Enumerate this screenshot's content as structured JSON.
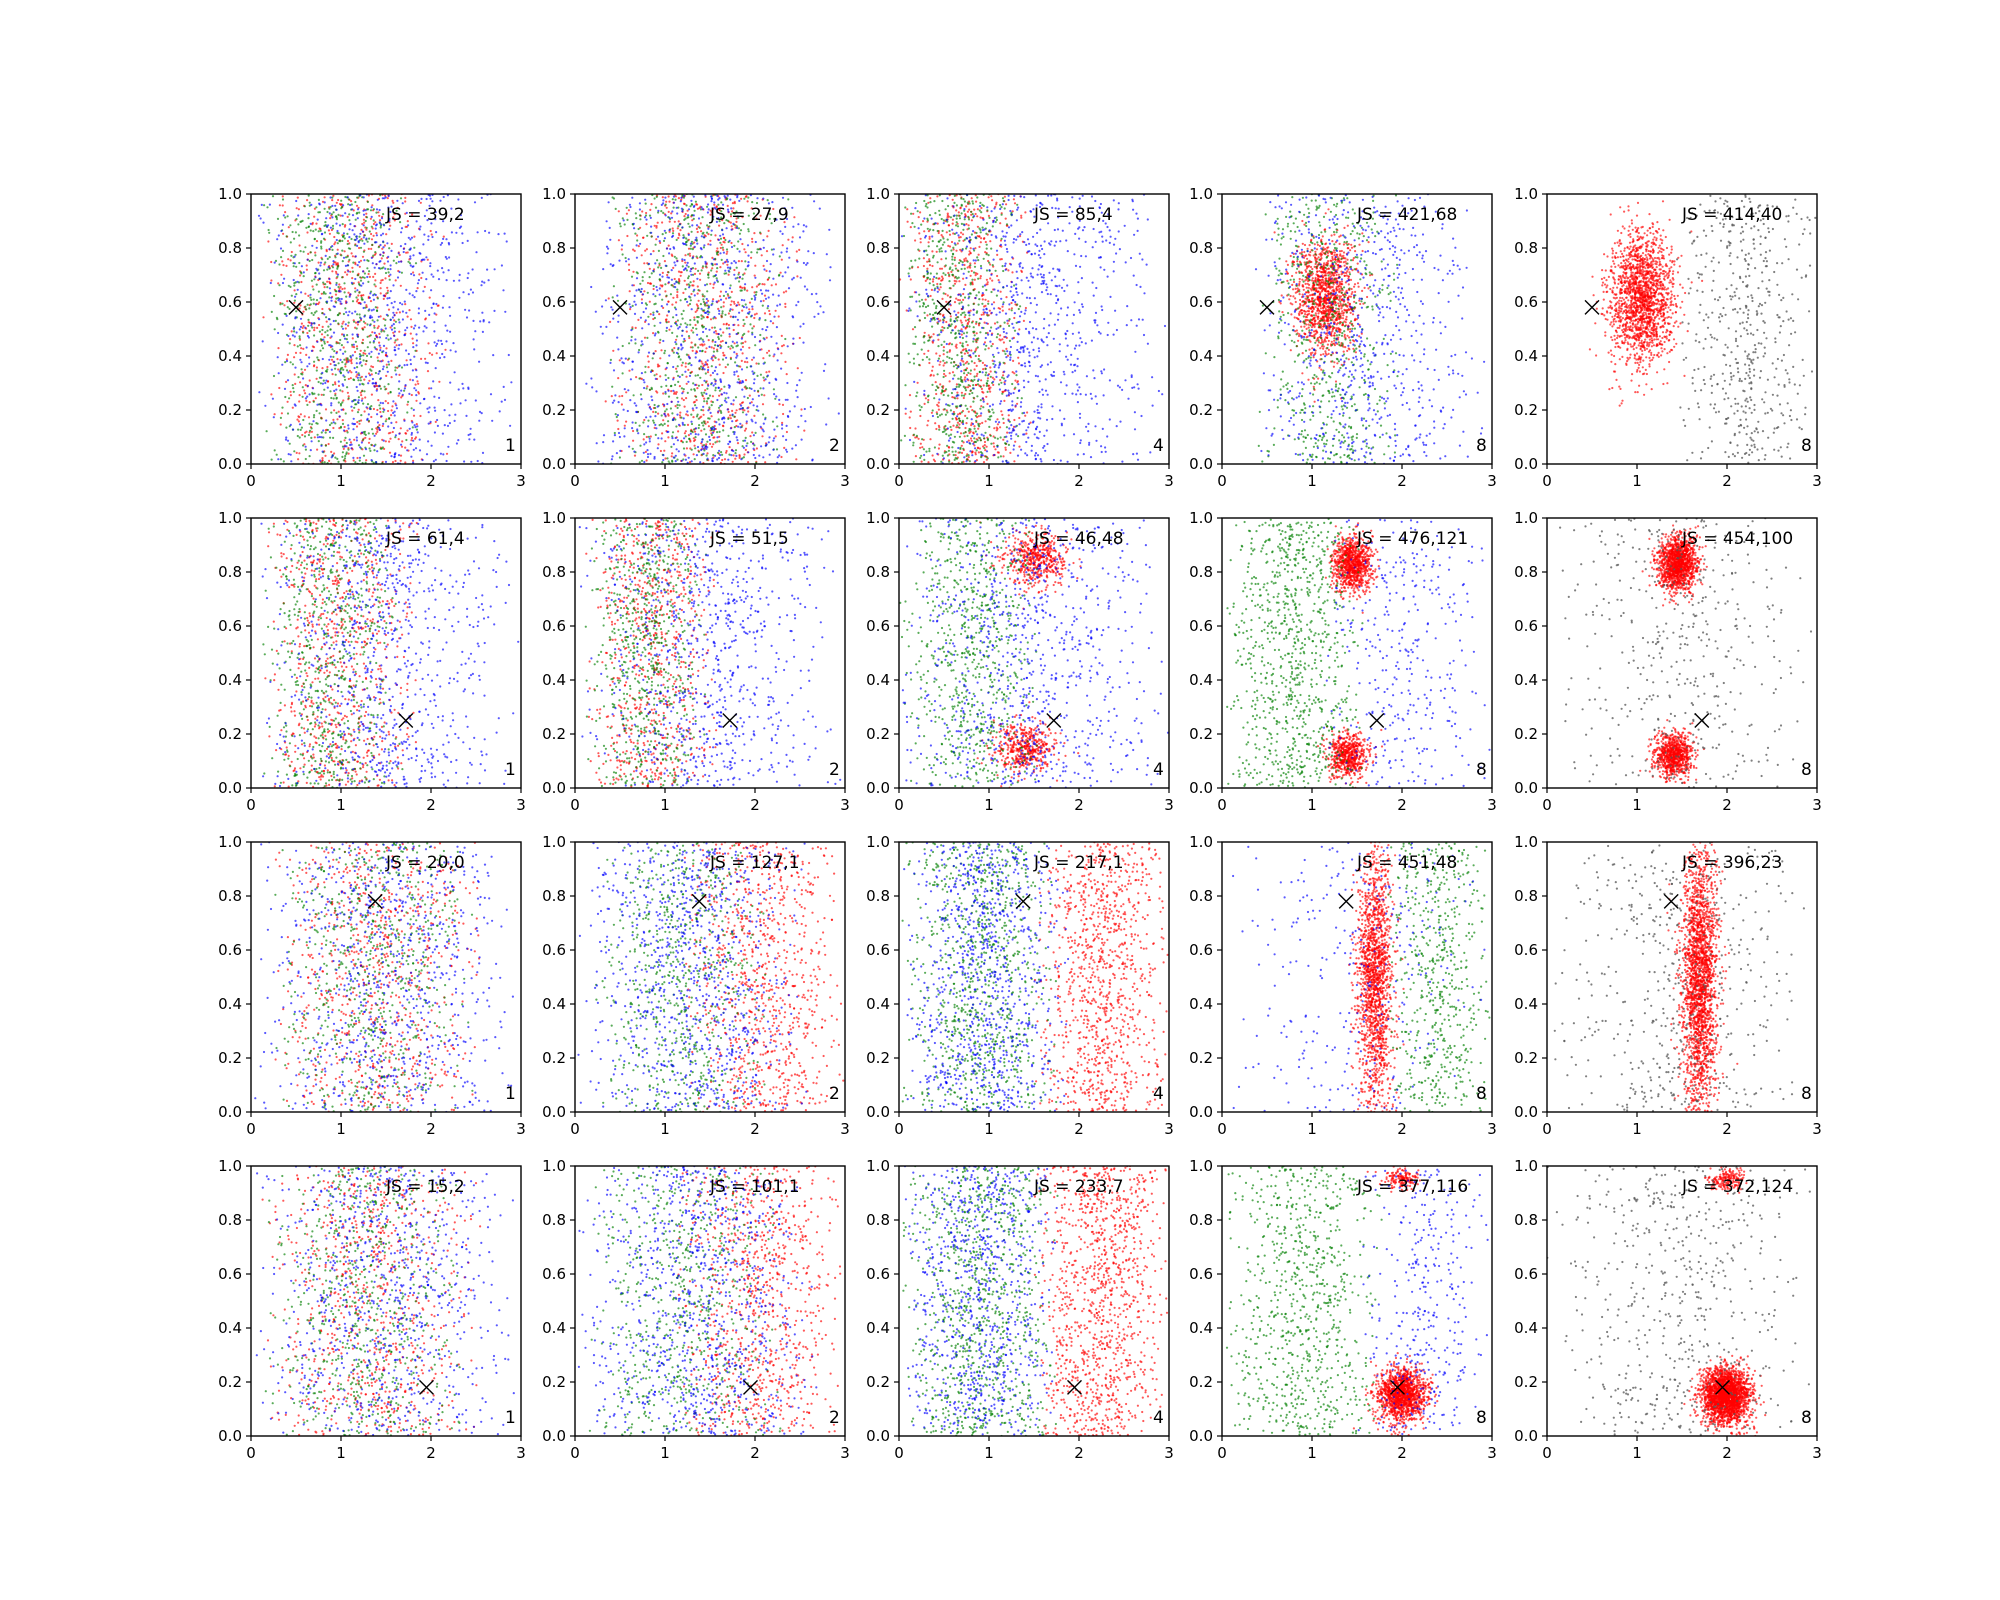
{
  "chart_data": {
    "type": "scatter",
    "layout": {
      "rows": 4,
      "cols": 5
    },
    "xlim": [
      0,
      3
    ],
    "ylim": [
      0,
      1
    ],
    "xticks": [
      "0",
      "1",
      "2",
      "3"
    ],
    "yticks": [
      "0.0",
      "0.2",
      "0.4",
      "0.6",
      "0.8",
      "1.0"
    ],
    "grid": false,
    "legend": "none",
    "colors": {
      "red": "#ff0000",
      "green": "#008000",
      "blue": "#0000ff",
      "gray": "#555555",
      "marker": "#000000"
    },
    "rows": [
      {
        "marker": [
          0.5,
          0.58
        ],
        "panels": [
          {
            "js": "JS = 39,2",
            "k": "1",
            "components": [
              {
                "color": "red",
                "mix": "band",
                "x": [
                  0.1,
                  2.2
                ],
                "n": 700
              },
              {
                "color": "green",
                "mix": "band",
                "x": [
                  0.1,
                  1.9
                ],
                "n": 650
              },
              {
                "color": "blue",
                "mix": "band",
                "x": [
                  0.0,
                  3.0
                ],
                "n": 800
              }
            ]
          },
          {
            "js": "JS = 27,9",
            "k": "2",
            "components": [
              {
                "color": "red",
                "mix": "band",
                "x": [
                  0.3,
                  2.6
                ],
                "n": 750
              },
              {
                "color": "green",
                "mix": "band",
                "x": [
                  0.3,
                  2.4
                ],
                "n": 650
              },
              {
                "color": "blue",
                "mix": "band",
                "x": [
                  0.0,
                  3.0
                ],
                "n": 800
              }
            ]
          },
          {
            "js": "JS = 85,4",
            "k": "4",
            "components": [
              {
                "color": "red",
                "mix": "band",
                "x": [
                  0.0,
                  1.5
                ],
                "n": 700
              },
              {
                "color": "green",
                "mix": "band",
                "x": [
                  0.0,
                  1.4
                ],
                "n": 650
              },
              {
                "color": "blue",
                "mix": "band",
                "x": [
                  0.0,
                  3.0
                ],
                "n": 800
              }
            ]
          },
          {
            "js": "JS = 421,68",
            "k": "8",
            "components": [
              {
                "color": "red",
                "mix": "blob",
                "cx": 1.15,
                "cy": 0.62,
                "sx": 0.35,
                "sy": 0.22,
                "n": 1200
              },
              {
                "color": "green",
                "mix": "band",
                "x": [
                  0.4,
                  2.0
                ],
                "n": 600
              },
              {
                "color": "blue",
                "mix": "band",
                "x": [
                  0.2,
                  3.0
                ],
                "n": 650
              }
            ]
          },
          {
            "js": "JS = 414,40",
            "k": "8",
            "components": [
              {
                "color": "red",
                "mix": "blob",
                "cx": 1.05,
                "cy": 0.62,
                "sx": 0.35,
                "sy": 0.25,
                "n": 1700
              },
              {
                "color": "gray",
                "mix": "band",
                "x": [
                  1.4,
                  3.0
                ],
                "n": 500
              }
            ]
          }
        ]
      },
      {
        "marker": [
          1.72,
          0.25
        ],
        "panels": [
          {
            "js": "JS = 61,4",
            "k": "1",
            "components": [
              {
                "color": "red",
                "mix": "band",
                "x": [
                  0.1,
                  1.9
                ],
                "n": 700
              },
              {
                "color": "green",
                "mix": "band",
                "x": [
                  0.1,
                  1.7
                ],
                "n": 650
              },
              {
                "color": "blue",
                "mix": "band",
                "x": [
                  0.0,
                  3.0
                ],
                "n": 800
              }
            ]
          },
          {
            "js": "JS = 51,5",
            "k": "2",
            "components": [
              {
                "color": "red",
                "mix": "band",
                "x": [
                  0.1,
                  1.6
                ],
                "n": 700
              },
              {
                "color": "green",
                "mix": "band",
                "x": [
                  0.1,
                  1.5
                ],
                "n": 650
              },
              {
                "color": "blue",
                "mix": "band",
                "x": [
                  0.0,
                  3.0
                ],
                "n": 800
              }
            ]
          },
          {
            "js": "JS = 46,48",
            "k": "4",
            "components": [
              {
                "color": "red",
                "mix": "blob",
                "cx": 1.5,
                "cy": 0.85,
                "sx": 0.35,
                "sy": 0.1,
                "n": 500
              },
              {
                "color": "red",
                "mix": "blob",
                "cx": 1.4,
                "cy": 0.15,
                "sx": 0.35,
                "sy": 0.1,
                "n": 450
              },
              {
                "color": "green",
                "mix": "band",
                "x": [
                  0.0,
                  1.6
                ],
                "n": 700
              },
              {
                "color": "blue",
                "mix": "band",
                "x": [
                  0.0,
                  3.0
                ],
                "n": 850
              }
            ]
          },
          {
            "js": "JS = 476,121",
            "k": "8",
            "components": [
              {
                "color": "red",
                "mix": "blob",
                "cx": 1.45,
                "cy": 0.83,
                "sx": 0.22,
                "sy": 0.1,
                "n": 900
              },
              {
                "color": "red",
                "mix": "blob",
                "cx": 1.4,
                "cy": 0.12,
                "sx": 0.22,
                "sy": 0.08,
                "n": 600
              },
              {
                "color": "green",
                "mix": "band",
                "x": [
                  0.0,
                  1.6
                ],
                "n": 900
              },
              {
                "color": "blue",
                "mix": "band",
                "x": [
                  1.0,
                  3.0
                ],
                "n": 350
              }
            ]
          },
          {
            "js": "JS = 454,100",
            "k": "8",
            "components": [
              {
                "color": "red",
                "mix": "blob",
                "cx": 1.45,
                "cy": 0.83,
                "sx": 0.22,
                "sy": 0.1,
                "n": 1300
              },
              {
                "color": "red",
                "mix": "blob",
                "cx": 1.4,
                "cy": 0.12,
                "sx": 0.22,
                "sy": 0.08,
                "n": 800
              },
              {
                "color": "gray",
                "mix": "band",
                "x": [
                  0.0,
                  3.0
                ],
                "n": 450
              }
            ]
          }
        ]
      },
      {
        "marker": [
          1.38,
          0.78
        ],
        "panels": [
          {
            "js": "JS = 20,0",
            "k": "1",
            "components": [
              {
                "color": "red",
                "mix": "band",
                "x": [
                  0.2,
                  2.7
                ],
                "n": 750
              },
              {
                "color": "green",
                "mix": "band",
                "x": [
                  0.2,
                  2.5
                ],
                "n": 650
              },
              {
                "color": "blue",
                "mix": "band",
                "x": [
                  0.0,
                  3.0
                ],
                "n": 800
              }
            ]
          },
          {
            "js": "JS = 127,1",
            "k": "2",
            "components": [
              {
                "color": "red",
                "mix": "band",
                "x": [
                  1.2,
                  3.0
                ],
                "n": 850
              },
              {
                "color": "green",
                "mix": "band",
                "x": [
                  0.2,
                  2.2
                ],
                "n": 650
              },
              {
                "color": "blue",
                "mix": "band",
                "x": [
                  0.0,
                  2.6
                ],
                "n": 900
              }
            ]
          },
          {
            "js": "JS = 217,1",
            "k": "4",
            "components": [
              {
                "color": "red",
                "mix": "band",
                "x": [
                  1.5,
                  3.0
                ],
                "n": 1000
              },
              {
                "color": "green",
                "mix": "band",
                "x": [
                  0.0,
                  1.8
                ],
                "n": 850
              },
              {
                "color": "blue",
                "mix": "band",
                "x": [
                  0.0,
                  1.9
                ],
                "n": 900
              }
            ]
          },
          {
            "js": "JS = 451,48",
            "k": "8",
            "components": [
              {
                "color": "red",
                "mix": "blob",
                "cx": 1.7,
                "cy": 0.5,
                "sx": 0.2,
                "sy": 0.5,
                "n": 1600
              },
              {
                "color": "green",
                "mix": "band",
                "x": [
                  1.8,
                  3.0
                ],
                "n": 550
              },
              {
                "color": "blue",
                "mix": "band",
                "x": [
                  0.0,
                  3.0
                ],
                "n": 300
              }
            ]
          },
          {
            "js": "JS = 396,23",
            "k": "8",
            "components": [
              {
                "color": "red",
                "mix": "blob",
                "cx": 1.7,
                "cy": 0.5,
                "sx": 0.2,
                "sy": 0.5,
                "n": 2200
              },
              {
                "color": "gray",
                "mix": "band",
                "x": [
                  0.0,
                  3.0
                ],
                "n": 500
              }
            ]
          }
        ]
      },
      {
        "marker": [
          1.95,
          0.18
        ],
        "panels": [
          {
            "js": "JS = 15,2",
            "k": "1",
            "components": [
              {
                "color": "red",
                "mix": "band",
                "x": [
                  0.1,
                  2.6
                ],
                "n": 750
              },
              {
                "color": "green",
                "mix": "band",
                "x": [
                  0.1,
                  2.4
                ],
                "n": 650
              },
              {
                "color": "blue",
                "mix": "band",
                "x": [
                  0.0,
                  3.0
                ],
                "n": 800
              }
            ]
          },
          {
            "js": "JS = 101,1",
            "k": "2",
            "components": [
              {
                "color": "red",
                "mix": "band",
                "x": [
                  1.1,
                  3.0
                ],
                "n": 850
              },
              {
                "color": "green",
                "mix": "band",
                "x": [
                  0.1,
                  2.3
                ],
                "n": 650
              },
              {
                "color": "blue",
                "mix": "band",
                "x": [
                  0.0,
                  2.7
                ],
                "n": 900
              }
            ]
          },
          {
            "js": "JS = 233,7",
            "k": "4",
            "components": [
              {
                "color": "red",
                "mix": "band",
                "x": [
                  1.5,
                  3.0
                ],
                "n": 1100
              },
              {
                "color": "green",
                "mix": "band",
                "x": [
                  0.0,
                  1.8
                ],
                "n": 900
              },
              {
                "color": "blue",
                "mix": "band",
                "x": [
                  0.0,
                  1.8
                ],
                "n": 800
              }
            ]
          },
          {
            "js": "JS = 377,116",
            "k": "8",
            "components": [
              {
                "color": "red",
                "mix": "blob",
                "cx": 2.0,
                "cy": 0.15,
                "sx": 0.28,
                "sy": 0.1,
                "n": 1300
              },
              {
                "color": "red",
                "mix": "blob",
                "cx": 2.0,
                "cy": 0.95,
                "sx": 0.2,
                "sy": 0.04,
                "n": 150
              },
              {
                "color": "green",
                "mix": "band",
                "x": [
                  0.0,
                  1.8
                ],
                "n": 800
              },
              {
                "color": "blue",
                "mix": "band",
                "x": [
                  1.5,
                  3.0
                ],
                "n": 350
              }
            ]
          },
          {
            "js": "JS = 372,124",
            "k": "8",
            "components": [
              {
                "color": "red",
                "mix": "blob",
                "cx": 1.98,
                "cy": 0.15,
                "sx": 0.27,
                "sy": 0.1,
                "n": 2200
              },
              {
                "color": "red",
                "mix": "blob",
                "cx": 2.0,
                "cy": 0.95,
                "sx": 0.2,
                "sy": 0.04,
                "n": 180
              },
              {
                "color": "gray",
                "mix": "band",
                "x": [
                  0.0,
                  3.0
                ],
                "n": 550
              }
            ]
          }
        ]
      }
    ]
  }
}
